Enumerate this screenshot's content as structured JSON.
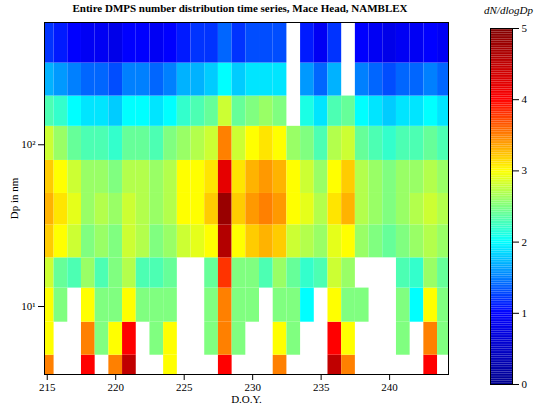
{
  "chart_data": {
    "type": "heatmap",
    "title": "Entire DMPS number distribution time series, Mace Head, NAMBLEX",
    "x_label": "D.O.Y.",
    "y_label": "Dp in nm",
    "log": "y",
    "xlim": [
      214.8,
      244.3
    ],
    "xticks": [
      215,
      220,
      225,
      230,
      235,
      240
    ],
    "ylim": [
      3.8,
      570
    ],
    "yticks": [
      {
        "value": 10,
        "label": "10¹"
      },
      {
        "value": 100,
        "label": "10²"
      }
    ],
    "cells": {
      "x_edges": [
        214.8,
        215.5,
        216.5,
        217.5,
        218.5,
        219.5,
        220.5,
        221.5,
        222.5,
        223.5,
        224.5,
        225.5,
        226.5,
        227.5,
        228.5,
        229.5,
        230.5,
        231.5,
        232.5,
        233.5,
        234.5,
        235.5,
        236.5,
        237.5,
        238.5,
        239.5,
        240.5,
        241.5,
        242.5,
        243.5,
        244.3
      ],
      "y_edges": [
        3.8,
        5,
        8,
        13,
        20,
        32,
        50,
        80,
        130,
        200,
        320,
        570
      ],
      "values": [
        [
          3.5,
          null,
          null,
          4,
          null,
          3.5,
          4.5,
          null,
          null,
          3,
          null,
          null,
          null,
          4,
          null,
          null,
          null,
          3.5,
          null,
          null,
          null,
          4.5,
          3.5,
          null,
          null,
          null,
          null,
          null,
          4,
          null
        ],
        [
          3,
          null,
          null,
          3.5,
          2.5,
          3,
          4,
          null,
          2.5,
          3,
          null,
          null,
          2.5,
          3.5,
          2.5,
          null,
          null,
          3,
          2.5,
          null,
          null,
          4,
          3,
          null,
          null,
          null,
          2.5,
          null,
          3.5,
          2.5
        ],
        [
          3,
          2.5,
          null,
          3,
          2.5,
          2.5,
          3,
          2.5,
          2.5,
          2.5,
          null,
          null,
          2.5,
          3.5,
          2.5,
          2.5,
          null,
          2.5,
          2.5,
          2,
          null,
          3,
          2.5,
          2.5,
          null,
          null,
          2.5,
          2,
          3,
          2.5
        ],
        [
          2.8,
          2.4,
          2.3,
          2.6,
          2.3,
          2.5,
          2.7,
          2.3,
          2.3,
          2.4,
          null,
          null,
          2.4,
          3.8,
          2.5,
          2.5,
          2.3,
          2.6,
          2.4,
          2.2,
          2.3,
          2.8,
          2.6,
          null,
          null,
          null,
          2.3,
          2.2,
          2.6,
          2.4
        ],
        [
          3.2,
          3,
          2.8,
          2.5,
          2.6,
          2.5,
          2.8,
          2.7,
          2.5,
          2.6,
          2.8,
          2.9,
          3,
          4.6,
          3,
          3.2,
          3.3,
          3.2,
          2.8,
          2.7,
          2.6,
          2.9,
          3,
          2.6,
          2.5,
          2.4,
          2.5,
          2.6,
          2.7,
          2.6
        ],
        [
          3.3,
          3.1,
          2.9,
          2.6,
          2.7,
          2.6,
          2.8,
          2.7,
          2.6,
          2.7,
          3,
          3,
          3.2,
          4.8,
          3.2,
          3.4,
          3.5,
          3.4,
          3,
          2.9,
          2.7,
          3.1,
          3.3,
          2.7,
          2.6,
          2.5,
          2.6,
          2.7,
          2.8,
          2.7
        ],
        [
          3.2,
          3,
          2.8,
          2.6,
          2.6,
          2.5,
          2.7,
          2.7,
          2.6,
          2.7,
          3,
          3,
          3.1,
          4.2,
          3.1,
          3.3,
          3.4,
          3.3,
          3,
          2.8,
          2.6,
          3,
          3.2,
          2.7,
          2.6,
          2.5,
          2.6,
          2.6,
          2.7,
          2.6
        ],
        [
          2.8,
          2.6,
          2.4,
          2.3,
          2.3,
          2.2,
          2.4,
          2.4,
          2.3,
          2.5,
          2.6,
          2.7,
          2.8,
          3.5,
          2.8,
          3,
          3.1,
          3,
          2.6,
          2.5,
          2.3,
          2.7,
          2.8,
          2.4,
          2.3,
          2.2,
          2.3,
          2.3,
          2.4,
          2.3
        ],
        [
          2.3,
          2.2,
          2,
          1.9,
          1.9,
          1.8,
          2,
          2,
          1.9,
          2,
          2.2,
          2.3,
          2.4,
          2.8,
          2.4,
          2.5,
          2.6,
          2.5,
          null,
          2.1,
          1.9,
          2.3,
          2.4,
          2,
          1.9,
          1.8,
          1.9,
          1.9,
          2,
          1.9
        ],
        [
          1.7,
          1.6,
          1.5,
          1.4,
          1.4,
          1.3,
          1.5,
          1.5,
          1.4,
          1.5,
          1.7,
          1.7,
          1.8,
          2,
          1.8,
          1.9,
          1.9,
          1.9,
          null,
          1.6,
          1.4,
          1.7,
          null,
          1.5,
          1.4,
          1.3,
          1.4,
          1.4,
          1.5,
          1.4
        ],
        [
          1.2,
          1.1,
          1,
          0.9,
          0.9,
          0.8,
          1,
          1,
          0.9,
          1,
          1.1,
          1.2,
          1.2,
          1.4,
          1.2,
          1.3,
          1.3,
          1.3,
          null,
          1.1,
          0.9,
          1.2,
          null,
          1,
          0.9,
          0.8,
          0.9,
          0.9,
          1,
          0.9
        ]
      ]
    },
    "colorbar": {
      "label": "dN/dlogDp",
      "range": [
        0,
        5
      ],
      "ticks": [
        0,
        1,
        2,
        3,
        4,
        5
      ]
    }
  }
}
